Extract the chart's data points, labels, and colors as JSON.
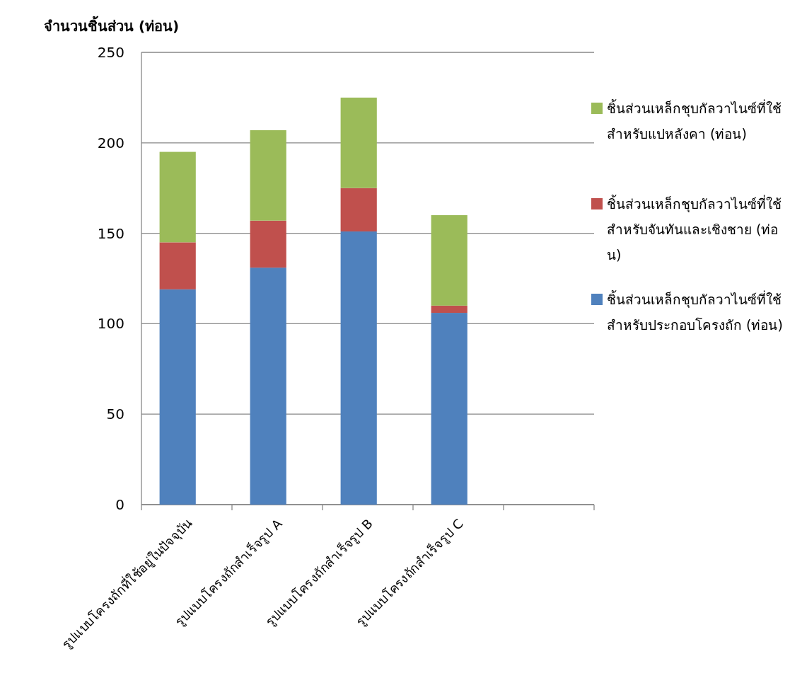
{
  "chart_data": {
    "type": "bar",
    "stacked": true,
    "ylabel": "จำนวนชิ้นส่วน (ท่อน)",
    "categories": [
      "รูปแบบโครงถักที่ใช้อยู่ในปัจจุบัน",
      "รูปแบบโครงถักสำเร็จรูป A",
      "รูปแบบโครงถักสำเร็จรูป B",
      "รูปแบบโครงถักสำเร็จรูป C",
      null
    ],
    "series": [
      {
        "name": "ชิ้นส่วนเหล็กชุบกัลวาไนซ์ที่ใช้สำหรับประกอบโครงถัก (ท่อน)",
        "color": "#4f81bd",
        "values": [
          119,
          131,
          151,
          106,
          null
        ]
      },
      {
        "name": "ชิ้นส่วนเหล็กชุบกัลวาไนซ์ที่ใช้สำหรับจันทันและเชิงชาย (ท่อน)",
        "color": "#c0504d",
        "values": [
          26,
          26,
          24,
          4,
          null
        ]
      },
      {
        "name": "ชิ้นส่วนเหล็กชุบกัลวาไนซ์ที่ใช้สำหรับแปหลังคา (ท่อน)",
        "color": "#9bbb59",
        "values": [
          50,
          50,
          50,
          50,
          null
        ]
      }
    ],
    "ylim": [
      0,
      250
    ],
    "yticks": [
      0,
      50,
      100,
      150,
      200,
      250
    ],
    "grid": "y",
    "legend": "right"
  }
}
